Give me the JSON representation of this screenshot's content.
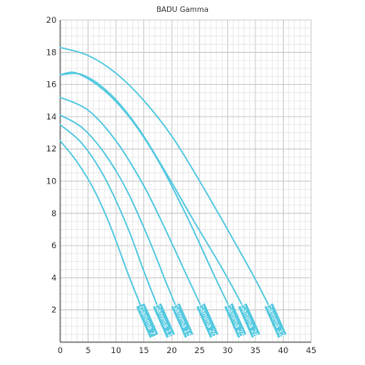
{
  "chart_data": {
    "type": "line",
    "title": "BADU Gamma",
    "xlabel": "",
    "ylabel": "",
    "xlim": [
      0,
      45
    ],
    "ylim": [
      0,
      20
    ],
    "x_ticks": [
      0,
      5,
      10,
      15,
      20,
      25,
      30,
      35,
      40,
      45
    ],
    "y_ticks": [
      2,
      4,
      6,
      8,
      10,
      12,
      14,
      16,
      18,
      20
    ],
    "grid": true,
    "line_color": "#55c9e0",
    "series": [
      {
        "name": "Gamma 7",
        "points": [
          [
            0,
            12.5
          ],
          [
            3,
            11.2
          ],
          [
            6,
            9.5
          ],
          [
            9,
            7.2
          ],
          [
            12,
            4.4
          ],
          [
            14.5,
            2.2
          ]
        ]
      },
      {
        "name": "Gamma 11",
        "points": [
          [
            0,
            13.5
          ],
          [
            4,
            12.3
          ],
          [
            8,
            10.2
          ],
          [
            12,
            7.2
          ],
          [
            15,
            4.4
          ],
          [
            17.5,
            2.2
          ]
        ]
      },
      {
        "name": "Gamma 15",
        "points": [
          [
            0,
            14.1
          ],
          [
            4,
            13.3
          ],
          [
            8,
            11.7
          ],
          [
            12,
            9.4
          ],
          [
            16,
            6.3
          ],
          [
            19,
            3.7
          ],
          [
            20.8,
            2.2
          ]
        ]
      },
      {
        "name": "Gamma 20",
        "points": [
          [
            0,
            15.2
          ],
          [
            5,
            14.4
          ],
          [
            10,
            12.5
          ],
          [
            15,
            9.7
          ],
          [
            19,
            6.9
          ],
          [
            23,
            3.9
          ],
          [
            25.3,
            2.2
          ]
        ]
      },
      {
        "name": "Gamma 25",
        "points": [
          [
            0,
            16.6
          ],
          [
            3,
            16.7
          ],
          [
            8,
            15.6
          ],
          [
            13,
            13.7
          ],
          [
            18,
            11.0
          ],
          [
            23,
            7.6
          ],
          [
            27,
            4.6
          ],
          [
            30.3,
            2.2
          ]
        ]
      },
      {
        "name": "Gamma 28",
        "points": [
          [
            0,
            16.6
          ],
          [
            4,
            16.6
          ],
          [
            9,
            15.4
          ],
          [
            14,
            13.3
          ],
          [
            19,
            10.5
          ],
          [
            24,
            7.5
          ],
          [
            29,
            4.6
          ],
          [
            32.8,
            2.2
          ]
        ]
      },
      {
        "name": "Gamma 32",
        "points": [
          [
            0,
            18.3
          ],
          [
            5,
            17.8
          ],
          [
            10,
            16.7
          ],
          [
            15,
            15.0
          ],
          [
            20,
            12.8
          ],
          [
            25,
            10.0
          ],
          [
            30,
            7.0
          ],
          [
            35,
            3.9
          ],
          [
            37.5,
            2.2
          ]
        ]
      }
    ]
  }
}
